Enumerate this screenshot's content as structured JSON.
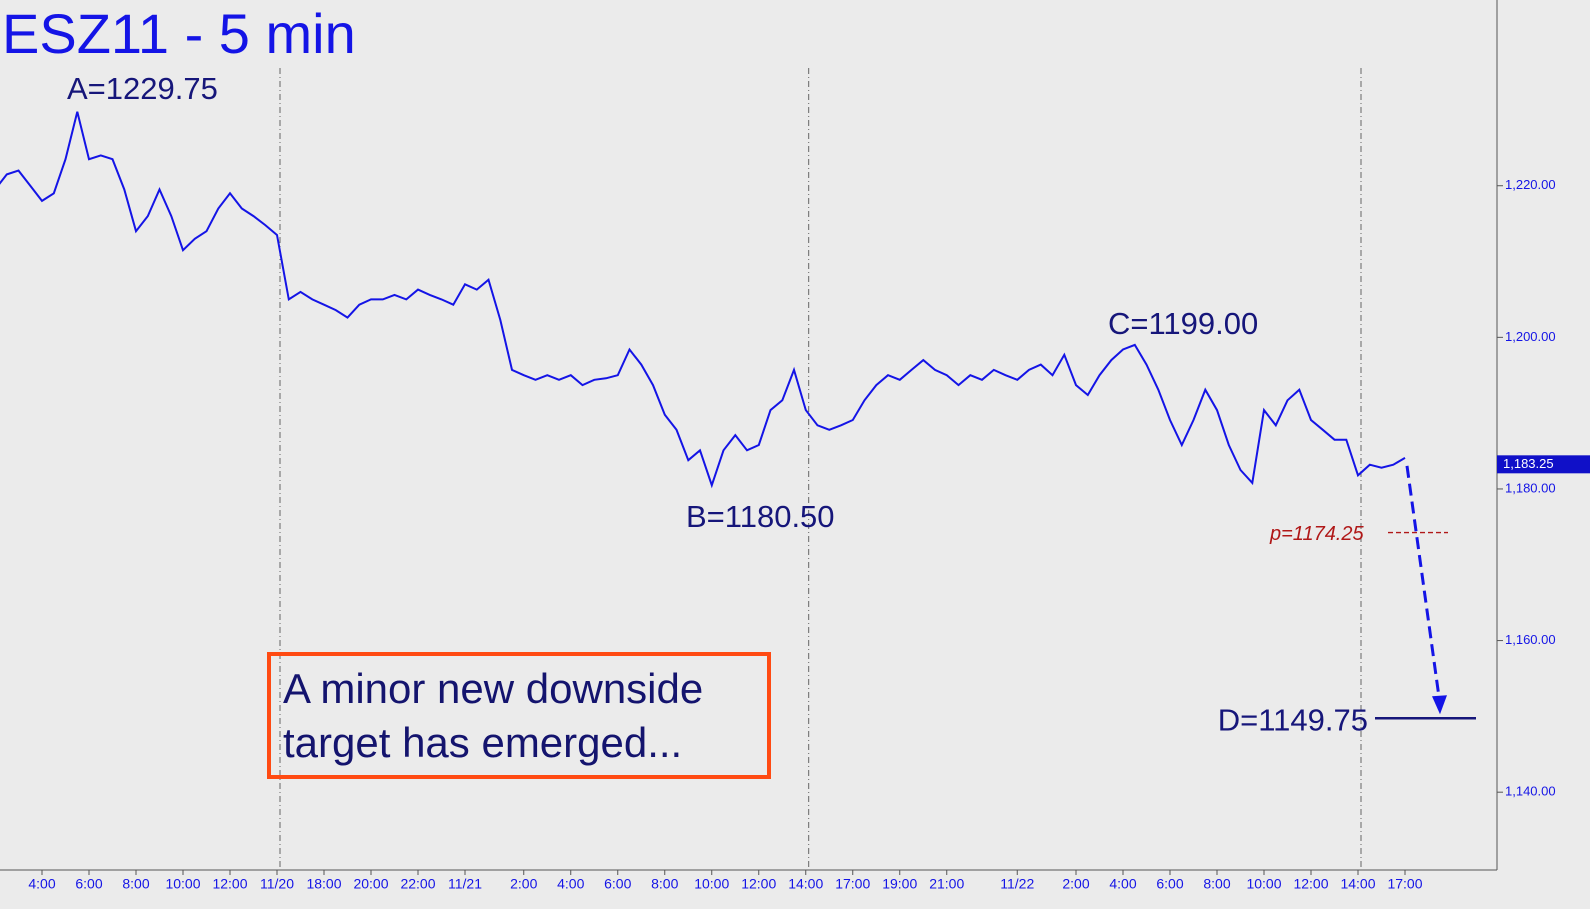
{
  "chart_data": {
    "type": "line",
    "title": "ESZ11 - 5 min",
    "color": "#1414e6",
    "categories": [
      null,
      null,
      null,
      null,
      "4:00",
      null,
      null,
      null,
      "6:00",
      null,
      null,
      null,
      "8:00",
      null,
      null,
      null,
      "10:00",
      null,
      null,
      null,
      "12:00",
      null,
      null,
      null,
      "11/20",
      null,
      null,
      null,
      "18:00",
      null,
      null,
      null,
      "20:00",
      null,
      null,
      null,
      "22:00",
      null,
      null,
      null,
      "11/21",
      null,
      null,
      null,
      null,
      "2:00",
      null,
      null,
      null,
      "4:00",
      null,
      null,
      null,
      "6:00",
      null,
      null,
      null,
      "8:00",
      null,
      null,
      null,
      "10:00",
      null,
      null,
      null,
      "12:00",
      null,
      null,
      null,
      "14:00",
      null,
      null,
      null,
      "17:00",
      null,
      null,
      null,
      "19:00",
      null,
      null,
      null,
      "21:00",
      null,
      null,
      null,
      null,
      null,
      "11/22",
      null,
      null,
      null,
      null,
      "2:00",
      null,
      null,
      null,
      "4:00",
      null,
      null,
      null,
      "6:00",
      null,
      null,
      null,
      "8:00",
      null,
      null,
      null,
      "10:00",
      null,
      null,
      null,
      "12:00",
      null,
      null,
      null,
      "14:00",
      null,
      null,
      null,
      "17:00",
      null,
      null,
      null,
      null,
      null,
      null,
      null
    ],
    "values": [
      1219.5,
      1221.5,
      1222,
      1220,
      1218,
      1219,
      1223.5,
      1229.75,
      1223.5,
      1224,
      1223.5,
      1219.5,
      1214,
      1216,
      1219.5,
      1216,
      1211.5,
      1213,
      1214,
      1217,
      1219,
      1217,
      1216,
      1214.8,
      1213.5,
      1205,
      1206,
      1205,
      1204.3,
      1203.6,
      1202.6,
      1204.3,
      1205,
      1205,
      1205.6,
      1205,
      1206.3,
      1205.6,
      1205,
      1204.3,
      1207,
      1206.3,
      1207.6,
      1202.3,
      1195.7,
      1195,
      1194.4,
      1195,
      1194.4,
      1195,
      1193.7,
      1194.4,
      1194.6,
      1195,
      1198.4,
      1196.4,
      1193.7,
      1189.8,
      1187.8,
      1183.8,
      1185.1,
      1180.5,
      1185.1,
      1187.1,
      1185.1,
      1185.8,
      1190.4,
      1191.7,
      1195.7,
      1190.4,
      1188.4,
      1187.8,
      1188.4,
      1189.1,
      1191.7,
      1193.7,
      1195,
      1194.4,
      1195.7,
      1197,
      1195.7,
      1195,
      1193.7,
      1195,
      1194.4,
      1195.7,
      1195,
      1194.4,
      1195.7,
      1196.4,
      1195,
      1197.7,
      1193.7,
      1192.4,
      1195,
      1197,
      1198.4,
      1199,
      1196.4,
      1193.1,
      1189.1,
      1185.8,
      1189.1,
      1193.1,
      1190.4,
      1185.8,
      1182.5,
      1180.8,
      1190.4,
      1188.4,
      1191.7,
      1193.1,
      1189.1,
      1187.8,
      1186.5,
      1186.5,
      1181.8,
      1183.2,
      1182.8,
      1183.2,
      1184.1,
      null,
      null,
      null,
      null,
      null,
      null,
      null
    ],
    "ylim": [
      1130,
      1244.5
    ],
    "yticks": [
      {
        "value": 1140,
        "label": "1,140.00"
      },
      {
        "value": 1160,
        "label": "1,160.00"
      },
      {
        "value": 1180,
        "label": "1,180.00"
      },
      {
        "value": 1200,
        "label": "1,200.00"
      },
      {
        "value": 1220,
        "label": "1,220.00"
      }
    ],
    "last_value": {
      "value": 1183.25,
      "label": "1,183.25"
    },
    "annotations": [
      {
        "text": "A=1229.75"
      },
      {
        "text": "B=1180.50"
      },
      {
        "text": "C=1199.00"
      },
      {
        "text": "D=1149.75",
        "value": 1149.75
      },
      {
        "text": "p=1174.25",
        "value": 1174.25
      }
    ],
    "note": "A minor new downside target has emerged..."
  }
}
